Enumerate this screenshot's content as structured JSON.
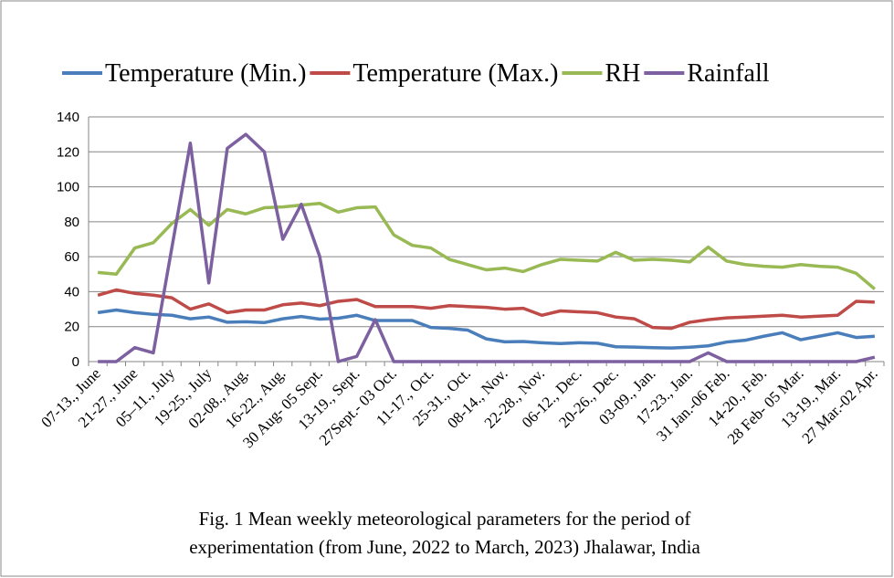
{
  "chart_data": {
    "type": "line",
    "caption": [
      "Fig. 1 Mean weekly meteorological parameters for the period of",
      "experimentation (from June, 2022 to March, 2023) Jhalawar, India"
    ],
    "legend": "top",
    "categories": [
      "07-13., June",
      null,
      "21-27., June",
      null,
      "05–11., July",
      null,
      "19-25., July",
      null,
      "02-08., Aug.",
      null,
      "16-22., Aug.",
      null,
      "30 Aug- 05 Sept.",
      null,
      "13-19., Sept.",
      null,
      "27Sept.- 03 Oct.",
      null,
      "11-17., Oct.",
      null,
      "25-31., Oct.",
      null,
      "08-14., Nov.",
      null,
      "22-28., Nov.",
      null,
      "06-12., Dec.",
      null,
      "20-26., Dec.",
      null,
      "03-09., Jan.",
      null,
      "17-23., Jan.",
      null,
      "31 Jan.-06 Feb.",
      null,
      "14-20., Feb.",
      null,
      "28 Feb- 05 Mar.",
      null,
      "13-19., Mar.",
      null,
      "27 Mar.-02 Apr."
    ],
    "series": [
      {
        "name": "Temperature (Min.)",
        "color": "#4a7ebb",
        "values": [
          28,
          29.5,
          28,
          27,
          26.5,
          24.5,
          25.5,
          22.5,
          22.8,
          22.3,
          24.5,
          25.8,
          24.3,
          24.8,
          26.5,
          23.5,
          23.5,
          23.5,
          19.5,
          19,
          18,
          13,
          11.3,
          11.5,
          10.8,
          10.3,
          10.8,
          10.5,
          8.5,
          8.3,
          8,
          7.8,
          8.2,
          9,
          11.2,
          12.2,
          14.5,
          16.5,
          12.5,
          14.5,
          16.5,
          13.8,
          14.5
        ]
      },
      {
        "name": "Temperature (Max.)",
        "color": "#be4b48",
        "values": [
          38,
          41,
          39,
          38,
          36.5,
          30,
          33,
          28,
          29.5,
          29.5,
          32.5,
          33.5,
          32,
          34.5,
          35.5,
          31.5,
          31.5,
          31.5,
          30.5,
          32,
          31.5,
          31,
          30,
          30.5,
          26.5,
          29,
          28.5,
          28,
          25.5,
          24.5,
          19.5,
          19,
          22.5,
          24,
          25,
          25.5,
          26,
          26.5,
          25.5,
          26,
          26.5,
          34.5,
          34
        ]
      },
      {
        "name": "RH",
        "color": "#98b954",
        "values": [
          51,
          50,
          65,
          68,
          79,
          87,
          78,
          87,
          84.5,
          88,
          88.5,
          89.5,
          90.5,
          85.5,
          88,
          88.5,
          72.5,
          66.5,
          65,
          58.5,
          55.5,
          52.5,
          53.5,
          51.5,
          55.5,
          58.5,
          58,
          57.5,
          62.5,
          58,
          58.5,
          58,
          57,
          65.5,
          57.5,
          55.5,
          54.5,
          54,
          55.5,
          54.5,
          54,
          50.5,
          41.5
        ]
      },
      {
        "name": "Rainfall",
        "color": "#7d60a0",
        "values": [
          0,
          0,
          8,
          5,
          65,
          125,
          45,
          122,
          130,
          120,
          70,
          90,
          60,
          0,
          3,
          24,
          0,
          0,
          0,
          0,
          0,
          0,
          0,
          0,
          0,
          0,
          0,
          0,
          0,
          0,
          0,
          0,
          0,
          5,
          0,
          0,
          0,
          0,
          0,
          0,
          0,
          0,
          2.5
        ]
      }
    ],
    "ylim": [
      0,
      140
    ],
    "yticks": [
      0,
      20,
      40,
      60,
      80,
      100,
      120,
      140
    ],
    "grid": true
  }
}
